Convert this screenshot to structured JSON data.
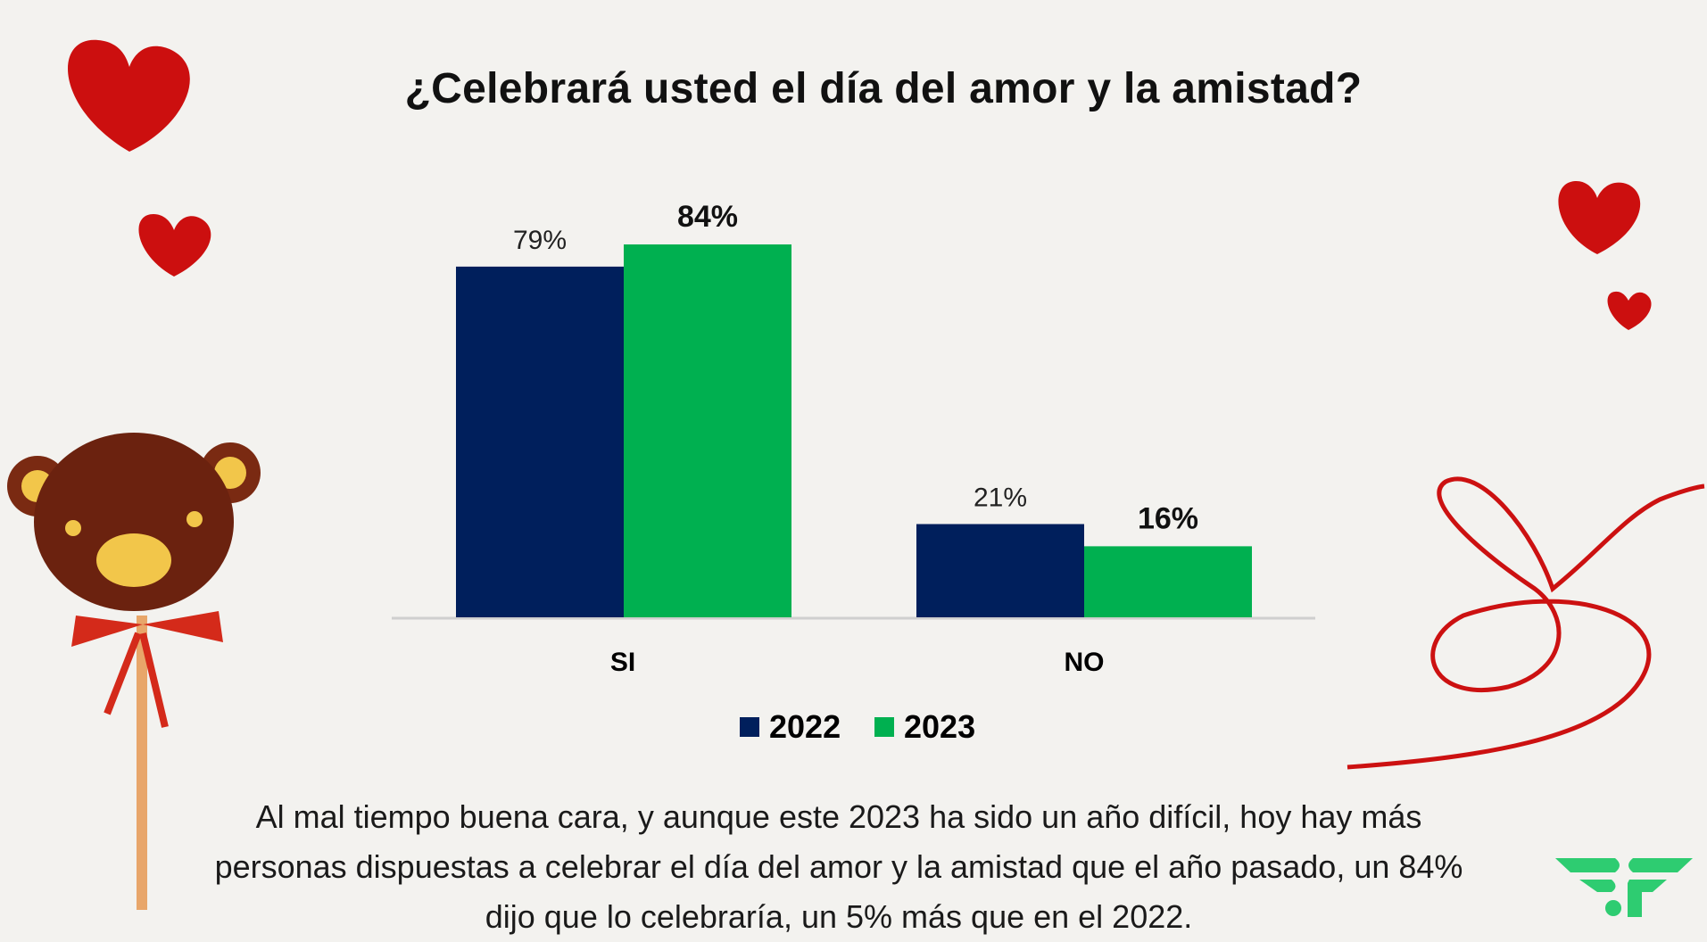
{
  "title": "¿Celebrará usted el día del amor y la amistad?",
  "body_text": "Al mal tiempo buena cara, y aunque este 2023 ha sido un año difícil, hoy hay más personas dispuestas a celebrar el día del amor y la amistad que el año pasado, un 84% dijo que lo celebraría, un 5% más que en el 2022.",
  "colors": {
    "2022": "#001f5c",
    "2023": "#00b050",
    "hearts": "#cc0f0f",
    "logo": "#2ecc71"
  },
  "decorations": [
    "heart-icon",
    "teddy-bear-lollipop",
    "red-ribbon",
    "brand-logo"
  ],
  "chart_data": {
    "type": "bar",
    "categories": [
      "SI",
      "NO"
    ],
    "series": [
      {
        "name": "2022",
        "values": [
          79,
          21
        ],
        "labels": [
          "79%",
          "21%"
        ],
        "color": "#001f5c"
      },
      {
        "name": "2023",
        "values": [
          84,
          16
        ],
        "labels": [
          "84%",
          "16%"
        ],
        "color": "#00b050"
      }
    ],
    "ylim": [
      0,
      84
    ],
    "grid": false,
    "legend": "bottom"
  }
}
